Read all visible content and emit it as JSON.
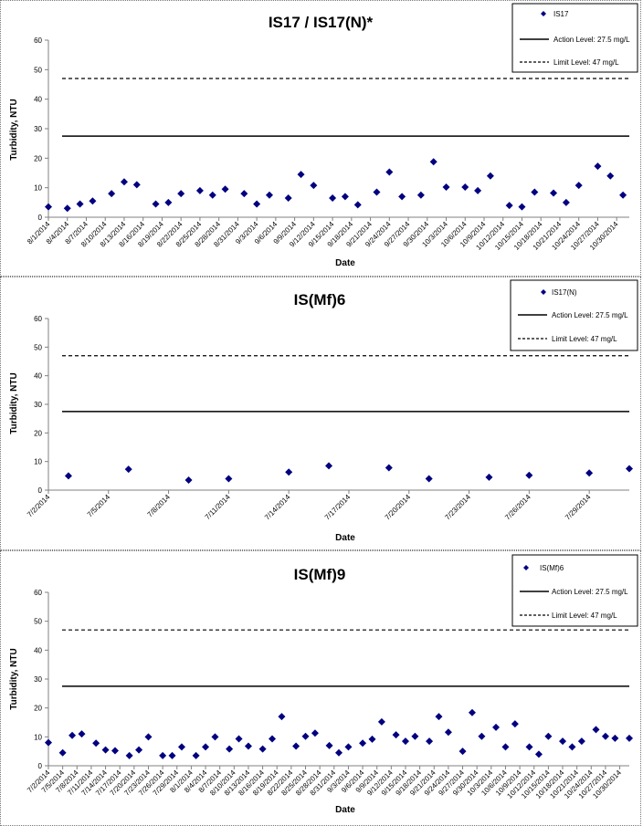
{
  "charts": [
    {
      "title": "IS17 / IS17(N)*",
      "xlabel": "Date",
      "ylabel": "Turbidity, NTU",
      "legend": {
        "marker": "IS17",
        "action": "Action Level: 27.5 mg/L",
        "limit": "Limit Level: 47 mg/L"
      }
    },
    {
      "title": "IS(Mf)6",
      "xlabel": "Date",
      "ylabel": "Turbidity, NTU",
      "legend": {
        "marker": "IS17(N)",
        "action": "Action Level: 27.5 mg/L",
        "limit": "Limit Level: 47 mg/L"
      }
    },
    {
      "title": "IS(Mf)9",
      "xlabel": "Date",
      "ylabel": "Turbidity, NTU",
      "legend": {
        "marker": "IS(Mf)6",
        "action": "Action Level: 27.5 mg/L",
        "limit": "Limit Level: 47 mg/L"
      }
    }
  ],
  "colors": {
    "marker": "#000080",
    "line": "#000000"
  },
  "chart_data": [
    {
      "type": "scatter",
      "title": "IS17 / IS17(N)*",
      "xlabel": "Date",
      "ylabel": "Turbidity, NTU",
      "ylim": [
        0,
        60
      ],
      "yticks": [
        0,
        10,
        20,
        30,
        40,
        50,
        60
      ],
      "xlim": [
        "8/1/2014",
        "11/1/2014"
      ],
      "xtick_labels": [
        "8/1/2014",
        "8/4/2014",
        "8/7/2014",
        "8/10/2014",
        "8/13/2014",
        "8/16/2014",
        "8/19/2014",
        "8/22/2014",
        "8/25/2014",
        "8/28/2014",
        "8/31/2014",
        "9/3/2014",
        "9/6/2014",
        "9/9/2014",
        "9/12/2014",
        "9/15/2014",
        "9/18/2014",
        "9/21/2014",
        "9/24/2014",
        "9/27/2014",
        "9/30/2014",
        "10/3/2014",
        "10/6/2014",
        "10/9/2014",
        "10/12/2014",
        "10/15/2014",
        "10/18/2014",
        "10/21/2014",
        "10/24/2014",
        "10/27/2014",
        "10/30/2014"
      ],
      "grid": false,
      "legend_position": "top-right",
      "series": [
        {
          "name": "IS17",
          "kind": "points",
          "x": [
            "8/1/2014",
            "8/4/2014",
            "8/6/2014",
            "8/8/2014",
            "8/11/2014",
            "8/13/2014",
            "8/15/2014",
            "8/18/2014",
            "8/20/2014",
            "8/22/2014",
            "8/25/2014",
            "8/27/2014",
            "8/29/2014",
            "9/1/2014",
            "9/3/2014",
            "9/5/2014",
            "9/8/2014",
            "9/10/2014",
            "9/12/2014",
            "9/15/2014",
            "9/17/2014",
            "9/19/2014",
            "9/22/2014",
            "9/24/2014",
            "9/26/2014",
            "9/29/2014",
            "10/1/2014",
            "10/3/2014",
            "10/6/2014",
            "10/8/2014",
            "10/10/2014",
            "10/13/2014",
            "10/15/2014",
            "10/17/2014",
            "10/20/2014",
            "10/22/2014",
            "10/24/2014",
            "10/27/2014",
            "10/29/2014",
            "10/31/2014"
          ],
          "y": [
            3.5,
            3,
            4.5,
            5.5,
            8,
            12,
            11,
            4.5,
            5,
            8,
            9,
            7.5,
            9.5,
            8,
            4.5,
            7.5,
            6.5,
            14.5,
            10.8,
            6.5,
            7,
            4.2,
            8.5,
            15.3,
            7,
            7.5,
            18.8,
            10.2,
            10.2,
            9,
            14,
            4,
            3.5,
            8.5,
            8.2,
            5,
            10.8,
            17.3,
            14,
            7.5
          ]
        },
        {
          "name": "Action Level: 27.5 mg/L",
          "kind": "line",
          "y": 27.5,
          "style": "solid"
        },
        {
          "name": "Limit Level: 47 mg/L",
          "kind": "line",
          "y": 47,
          "style": "dashed"
        }
      ]
    },
    {
      "type": "scatter",
      "title": "IS(Mf)6",
      "xlabel": "Date",
      "ylabel": "Turbidity, NTU",
      "ylim": [
        0,
        60
      ],
      "yticks": [
        0,
        10,
        20,
        30,
        40,
        50,
        60
      ],
      "xlim": [
        "7/2/2014",
        "7/31/2014"
      ],
      "xtick_labels": [
        "7/2/2014",
        "7/5/2014",
        "7/8/2014",
        "7/11/2014",
        "7/14/2014",
        "7/17/2014",
        "7/20/2014",
        "7/23/2014",
        "7/26/2014",
        "7/29/2014"
      ],
      "grid": false,
      "legend_position": "top-right",
      "series": [
        {
          "name": "IS17(N)",
          "kind": "points",
          "x": [
            "7/3/2014",
            "7/6/2014",
            "7/9/2014",
            "7/11/2014",
            "7/14/2014",
            "7/16/2014",
            "7/19/2014",
            "7/21/2014",
            "7/24/2014",
            "7/26/2014",
            "7/29/2014",
            "7/31/2014"
          ],
          "y": [
            5,
            7.3,
            3.5,
            4,
            6.3,
            8.5,
            7.8,
            4,
            4.5,
            5.2,
            6,
            7.5
          ]
        },
        {
          "name": "Action Level: 27.5 mg/L",
          "kind": "line",
          "y": 27.5,
          "style": "solid"
        },
        {
          "name": "Limit Level: 47 mg/L",
          "kind": "line",
          "y": 47,
          "style": "dashed"
        }
      ]
    },
    {
      "type": "scatter",
      "title": "IS(Mf)9",
      "xlabel": "Date",
      "ylabel": "Turbidity, NTU",
      "ylim": [
        0,
        60
      ],
      "yticks": [
        0,
        10,
        20,
        30,
        40,
        50,
        60
      ],
      "xlim": [
        "7/2/2014",
        "11/1/2014"
      ],
      "xtick_labels": [
        "7/2/2014",
        "7/5/2014",
        "7/8/2014",
        "7/11/2014",
        "7/14/2014",
        "7/17/2014",
        "7/20/2014",
        "7/23/2014",
        "7/26/2014",
        "7/29/2014",
        "8/1/2014",
        "8/4/2014",
        "8/7/2014",
        "8/10/2014",
        "8/13/2014",
        "8/16/2014",
        "8/19/2014",
        "8/22/2014",
        "8/25/2014",
        "8/28/2014",
        "8/31/2014",
        "9/3/2014",
        "9/6/2014",
        "9/9/2014",
        "9/12/2014",
        "9/15/2014",
        "9/18/2014",
        "9/21/2014",
        "9/24/2014",
        "9/27/2014",
        "9/30/2014",
        "10/3/2014",
        "10/6/2014",
        "10/9/2014",
        "10/12/2014",
        "10/15/2014",
        "10/18/2014",
        "10/21/2014",
        "10/24/2014",
        "10/27/2014",
        "10/30/2014"
      ],
      "grid": false,
      "legend_position": "top-right",
      "series": [
        {
          "name": "IS(Mf)6",
          "kind": "points",
          "x": [
            "7/2/2014",
            "7/5/2014",
            "7/7/2014",
            "7/9/2014",
            "7/12/2014",
            "7/14/2014",
            "7/16/2014",
            "7/19/2014",
            "7/21/2014",
            "7/23/2014",
            "7/26/2014",
            "7/28/2014",
            "7/30/2014",
            "8/2/2014",
            "8/4/2014",
            "8/6/2014",
            "8/9/2014",
            "8/11/2014",
            "8/13/2014",
            "8/16/2014",
            "8/18/2014",
            "8/20/2014",
            "8/23/2014",
            "8/25/2014",
            "8/27/2014",
            "8/30/2014",
            "9/1/2014",
            "9/3/2014",
            "9/6/2014",
            "9/8/2014",
            "9/10/2014",
            "9/13/2014",
            "9/15/2014",
            "9/17/2014",
            "9/20/2014",
            "9/22/2014",
            "9/24/2014",
            "9/27/2014",
            "9/29/2014",
            "10/1/2014",
            "10/4/2014",
            "10/6/2014",
            "10/8/2014",
            "10/11/2014",
            "10/13/2014",
            "10/15/2014",
            "10/18/2014",
            "10/20/2014",
            "10/22/2014",
            "10/25/2014",
            "10/27/2014",
            "10/29/2014",
            "11/1/2014"
          ],
          "y": [
            8,
            4.5,
            10.5,
            11,
            7.8,
            5.5,
            5.2,
            3.5,
            5.5,
            10,
            3.5,
            3.5,
            6.5,
            3.5,
            6.5,
            10,
            5.8,
            9.3,
            6.8,
            5.8,
            9.3,
            17,
            6.8,
            10.2,
            11.3,
            7,
            4.5,
            6.5,
            7.8,
            9.2,
            15.2,
            10.7,
            8.5,
            10.2,
            8.5,
            17,
            11.6,
            5,
            18.4,
            10.2,
            13.3,
            6.5,
            14.5,
            6.5,
            4,
            10.2,
            8.5,
            6.5,
            8.5,
            12.5,
            10.2,
            9.5,
            9.5
          ]
        },
        {
          "name": "Action Level: 27.5 mg/L",
          "kind": "line",
          "y": 27.5,
          "style": "solid"
        },
        {
          "name": "Limit Level: 47 mg/L",
          "kind": "line",
          "y": 47,
          "style": "dashed"
        }
      ]
    }
  ]
}
